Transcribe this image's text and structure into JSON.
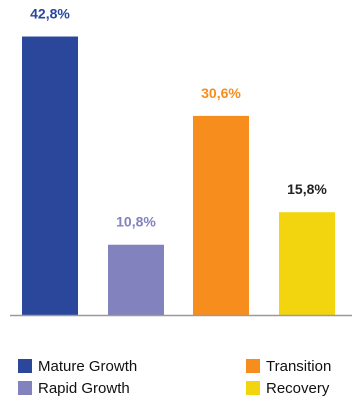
{
  "chart_data": {
    "type": "bar",
    "categories": [
      "Mature Growth",
      "Rapid Growth",
      "Transition",
      "Recovery"
    ],
    "values": [
      42.8,
      10.8,
      30.6,
      15.8
    ],
    "value_labels": [
      "42,8%",
      "10,8%",
      "30,6%",
      "15,8%"
    ],
    "colors": [
      "#2a479c",
      "#8282bf",
      "#f78d1c",
      "#f2d50f"
    ],
    "label_colors": [
      "#2a479c",
      "#8282bf",
      "#f78d1c",
      "#222222"
    ],
    "ylim": [
      0,
      45
    ],
    "grid": false,
    "legend_position": "bottom",
    "axis_color": "#9a9a9a"
  }
}
